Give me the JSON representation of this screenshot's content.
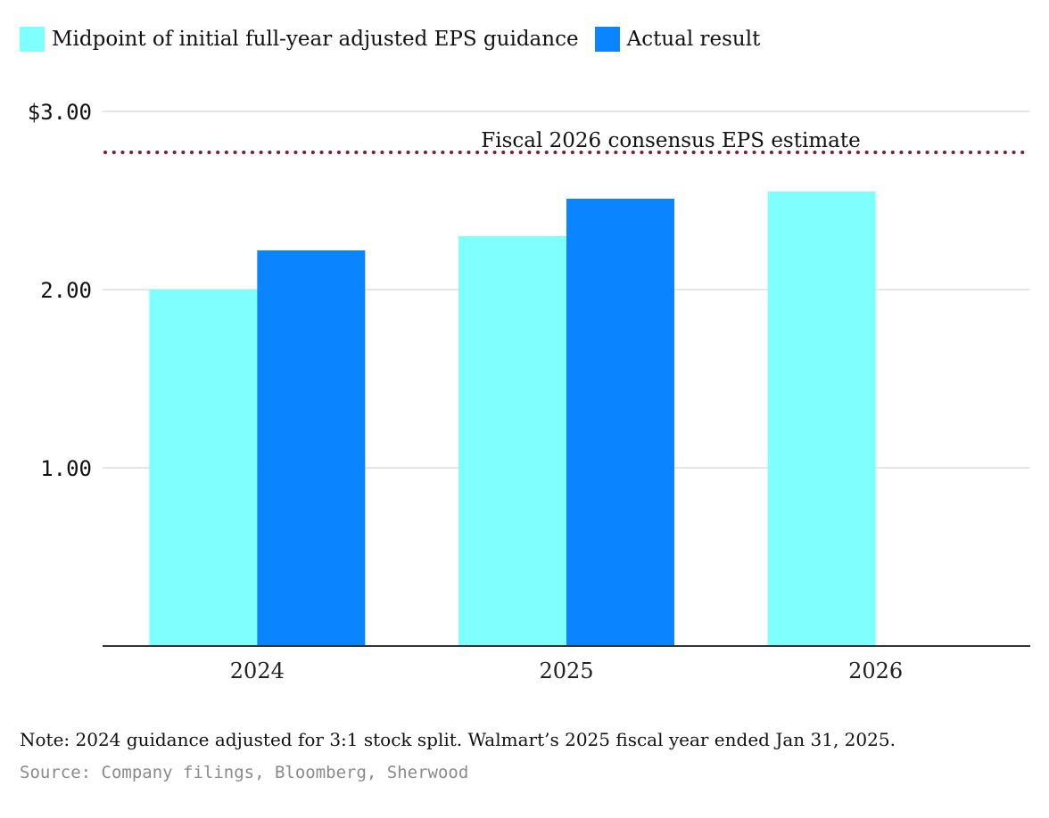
{
  "colors": {
    "guidance": "#80FFFF",
    "actual": "#0A84FF",
    "reference": "#7A1F35",
    "grid": "#dddddd",
    "axis": "#333333"
  },
  "legend": [
    {
      "label": "Midpoint of initial full-year adjusted EPS guidance",
      "color": "#80FFFF"
    },
    {
      "label": "Actual result",
      "color": "#0A84FF"
    }
  ],
  "chart_data": {
    "type": "bar",
    "categories": [
      "2024",
      "2025",
      "2026"
    ],
    "series": [
      {
        "name": "Midpoint of initial full-year adjusted EPS guidance",
        "values": [
          2.0,
          2.3,
          2.55
        ]
      },
      {
        "name": "Actual result",
        "values": [
          2.22,
          2.51,
          null
        ]
      }
    ],
    "ylim": [
      0,
      3.0
    ],
    "yticks": [
      {
        "value": 1.0,
        "label": "1.00"
      },
      {
        "value": 2.0,
        "label": "2.00"
      },
      {
        "value": 3.0,
        "label": "$3.00"
      }
    ],
    "reference_line": {
      "value": 2.77,
      "label": "Fiscal 2026 consensus EPS estimate",
      "style": "dotted"
    },
    "grid": true,
    "legend_position": "top-left"
  },
  "note": "Note: 2024 guidance adjusted for 3:1 stock split. Walmart’s 2025 fiscal year ended Jan 31, 2025.",
  "source": "Source: Company filings, Bloomberg, Sherwood"
}
